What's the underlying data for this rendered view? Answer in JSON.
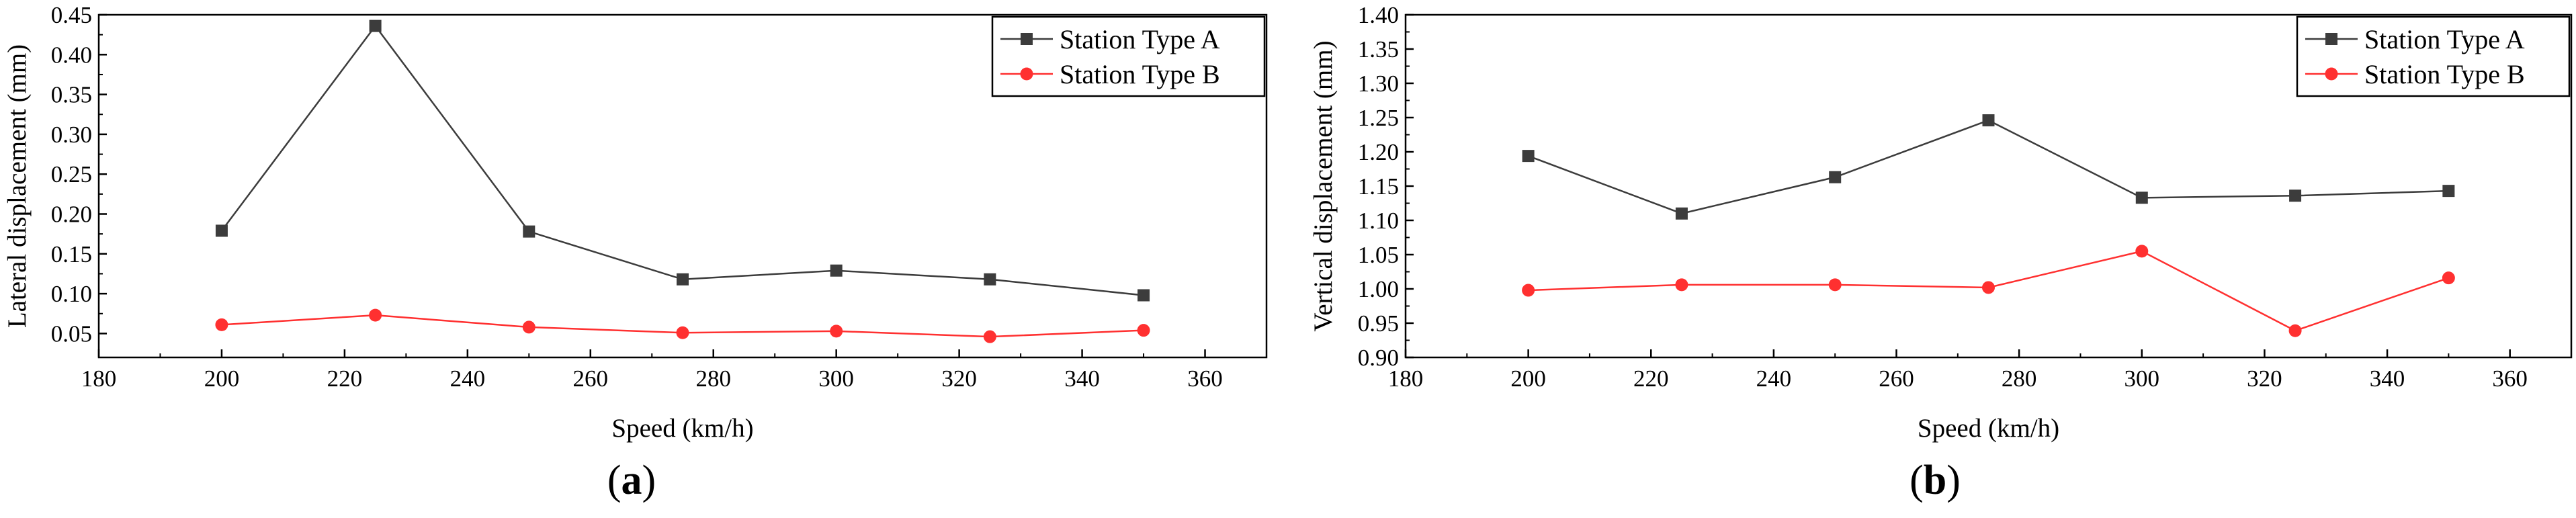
{
  "chart_data": [
    {
      "type": "line",
      "panel_label": "a",
      "title": "",
      "xlabel": "Speed (km/h)",
      "ylabel": "Lateral displacement (mm)",
      "xlim": [
        180,
        370
      ],
      "ylim": [
        0.02,
        0.45
      ],
      "xticks": [
        180,
        200,
        220,
        240,
        260,
        280,
        300,
        320,
        340,
        360
      ],
      "yticks": [
        0.05,
        0.1,
        0.15,
        0.2,
        0.25,
        0.3,
        0.35,
        0.4,
        0.45
      ],
      "xtick_labels": [
        "180",
        "200",
        "220",
        "240",
        "260",
        "280",
        "300",
        "320",
        "340",
        "360"
      ],
      "ytick_labels": [
        "0.05",
        "0.10",
        "0.15",
        "0.20",
        "0.25",
        "0.30",
        "0.35",
        "0.40",
        "0.45"
      ],
      "legend_position": "top-right",
      "x": [
        200,
        225,
        250,
        275,
        300,
        325,
        350
      ],
      "series": [
        {
          "name": "Station Type A",
          "marker": "square",
          "color": "#3c3c3c",
          "values": [
            0.179,
            0.436,
            0.178,
            0.118,
            0.129,
            0.118,
            0.098
          ]
        },
        {
          "name": "Station Type B",
          "marker": "circle",
          "color": "#ff3030",
          "values": [
            0.061,
            0.073,
            0.058,
            0.051,
            0.053,
            0.046,
            0.054
          ]
        }
      ]
    },
    {
      "type": "line",
      "panel_label": "b",
      "title": "",
      "xlabel": "Speed (km/h)",
      "ylabel": "Vertical displacement (mm)",
      "xlim": [
        180,
        370
      ],
      "ylim": [
        0.9,
        1.4
      ],
      "xticks": [
        180,
        200,
        220,
        240,
        260,
        280,
        300,
        320,
        340,
        360
      ],
      "yticks": [
        0.9,
        0.95,
        1.0,
        1.05,
        1.1,
        1.15,
        1.2,
        1.25,
        1.3,
        1.35,
        1.4
      ],
      "xtick_labels": [
        "180",
        "200",
        "220",
        "240",
        "260",
        "280",
        "300",
        "320",
        "340",
        "360"
      ],
      "ytick_labels": [
        "0.90",
        "0.95",
        "1.00",
        "1.05",
        "1.10",
        "1.15",
        "1.20",
        "1.25",
        "1.30",
        "1.35",
        "1.40"
      ],
      "legend_position": "top-right",
      "x": [
        200,
        225,
        250,
        275,
        300,
        325,
        350
      ],
      "series": [
        {
          "name": "Station Type A",
          "marker": "square",
          "color": "#3c3c3c",
          "values": [
            1.194,
            1.11,
            1.163,
            1.246,
            1.133,
            1.136,
            1.143
          ]
        },
        {
          "name": "Station Type B",
          "marker": "circle",
          "color": "#ff3030",
          "values": [
            0.998,
            1.006,
            1.006,
            1.002,
            1.055,
            0.939,
            1.016
          ]
        }
      ]
    }
  ]
}
